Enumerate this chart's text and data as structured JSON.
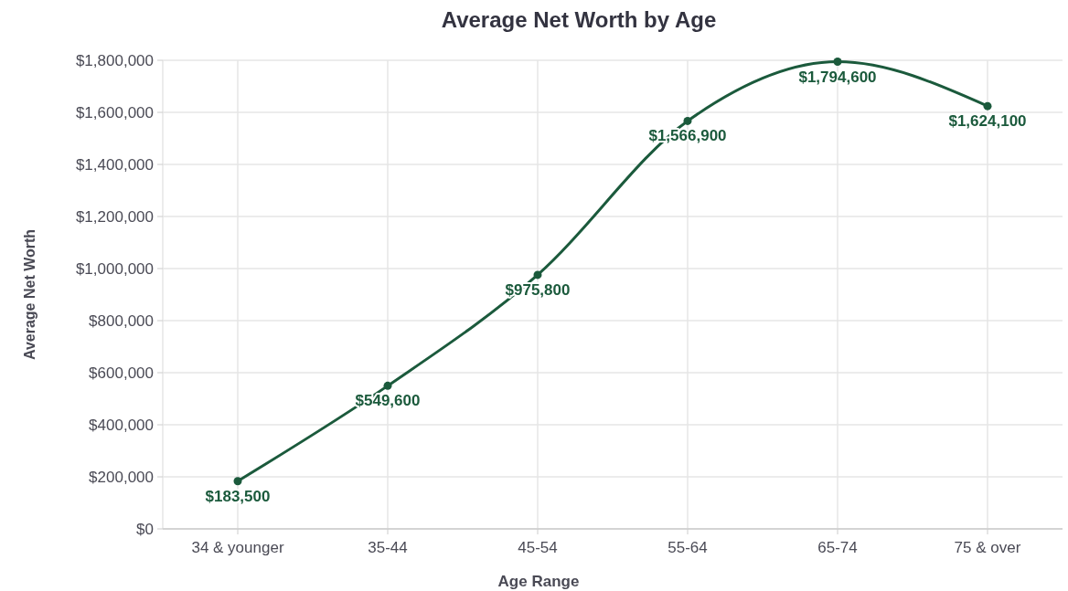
{
  "chart_data": {
    "type": "line",
    "title": "Average Net Worth by Age",
    "xlabel": "Age Range",
    "ylabel": "Average Net Worth",
    "categories": [
      "34 & younger",
      "35-44",
      "45-54",
      "55-64",
      "65-74",
      "75 & over"
    ],
    "series": [
      {
        "color": "#1b5a3c",
        "values": [
          183500,
          549600,
          975800,
          1566900,
          1794600,
          1624100
        ],
        "value_labels": [
          "$183,500",
          "$549,600",
          "$975,800",
          "$1,566,900",
          "$1,794,600",
          "$1,624,100"
        ]
      }
    ],
    "ylim": [
      0,
      1800000
    ],
    "yticks": [
      {
        "value": 0,
        "label": "$0"
      },
      {
        "value": 200000,
        "label": "$200,000"
      },
      {
        "value": 400000,
        "label": "$400,000"
      },
      {
        "value": 600000,
        "label": "$600,000"
      },
      {
        "value": 800000,
        "label": "$800,000"
      },
      {
        "value": 1000000,
        "label": "$1,000,000"
      },
      {
        "value": 1200000,
        "label": "$1,200,000"
      },
      {
        "value": 1400000,
        "label": "$1,400,000"
      },
      {
        "value": 1600000,
        "label": "$1,600,000"
      },
      {
        "value": 1800000,
        "label": "$1,800,000"
      }
    ],
    "grid": true,
    "marker": "circle",
    "line_style": "solid"
  }
}
